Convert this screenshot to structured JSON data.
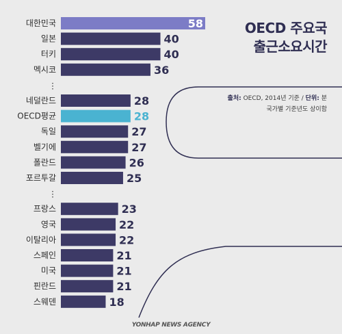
{
  "title": {
    "line1": "OECD 주요국",
    "line2": "출근소요시간"
  },
  "note": {
    "source_label": "출처:",
    "source_text": "OECD, 2014년 기준 / ",
    "unit_label": "단위:",
    "unit_text": "분",
    "line2": "국가별 기준년도 상이함"
  },
  "agency": "YONHAP NEWS AGENCY",
  "colors": {
    "background": "#ebebeb",
    "bar_default": "#3d3a66",
    "bar_korea": "#7c7cc6",
    "bar_oecd": "#4ab3d1",
    "label_default": "#2f2e52",
    "label_oecd": "#4ab3d1",
    "curve": "#2f2e52"
  },
  "chart_data": {
    "type": "bar",
    "orientation": "horizontal",
    "categories": [
      "대한민국",
      "일본",
      "터키",
      "멕시코",
      "네덜란드",
      "OECD평균",
      "독일",
      "벨기에",
      "폴란드",
      "포르투갈",
      "프랑스",
      "영국",
      "이탈리아",
      "스페인",
      "미국",
      "핀란드",
      "스웨덴"
    ],
    "values": [
      58,
      40,
      40,
      36,
      28,
      28,
      27,
      27,
      26,
      25,
      23,
      22,
      22,
      21,
      21,
      21,
      18
    ],
    "highlight": {
      "대한민국": "bar_korea",
      "OECD평균": "bar_oecd"
    },
    "gaps_after": [
      "멕시코",
      "포르투갈"
    ],
    "gap_marker": "⋮",
    "xlim": [
      0,
      58
    ],
    "grid": false,
    "legend": "none"
  }
}
